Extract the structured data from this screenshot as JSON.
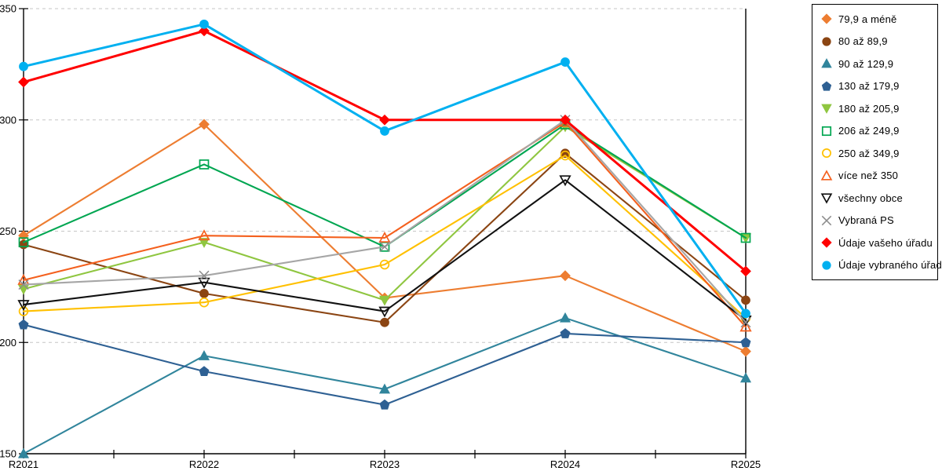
{
  "chart_data": {
    "type": "line",
    "title": "",
    "xlabel": "",
    "ylabel": "",
    "x": [
      "R2021",
      "R2022",
      "R2023",
      "R2024",
      "R2025"
    ],
    "ylim": [
      150,
      350
    ],
    "y_ticks": [
      350,
      300,
      250,
      200,
      150
    ],
    "grid": "horizontal-dashed",
    "grid_color": "#C6C6C6",
    "axis_color": "#000000",
    "legend_position": "top-right-outside",
    "series": [
      {
        "name": "79,9 a méně",
        "marker": "diamond",
        "fill": "filled",
        "color": "#ED7D31",
        "values": [
          248,
          298,
          220,
          230,
          196
        ]
      },
      {
        "name": "80 až 89,9",
        "marker": "circle",
        "fill": "filled",
        "color": "#8B4513",
        "values": [
          244,
          222,
          209,
          285,
          219
        ]
      },
      {
        "name": "90 až 129,9",
        "marker": "triangle-up",
        "fill": "filled",
        "color": "#31859C",
        "values": [
          150,
          194,
          179,
          211,
          184
        ]
      },
      {
        "name": "130 až 179,9",
        "marker": "pentagon",
        "fill": "filled",
        "color": "#2E6093",
        "values": [
          208,
          187,
          172,
          204,
          200
        ]
      },
      {
        "name": "180 až 205,9",
        "marker": "triangle-down",
        "fill": "filled",
        "color": "#8FC640",
        "values": [
          224,
          245,
          219,
          297,
          247
        ]
      },
      {
        "name": "206 až 249,9",
        "marker": "square",
        "fill": "open",
        "color": "#00A651",
        "values": [
          245,
          280,
          243,
          298,
          247
        ]
      },
      {
        "name": "250 až 349,9",
        "marker": "circle",
        "fill": "open",
        "color": "#FFC000",
        "values": [
          214,
          218,
          235,
          284,
          211
        ]
      },
      {
        "name": "více než 350",
        "marker": "triangle-up",
        "fill": "open",
        "color": "#F4601E",
        "values": [
          228,
          248,
          247,
          299,
          207
        ]
      },
      {
        "name": "všechny obce",
        "marker": "triangle-down",
        "fill": "open",
        "color": "#111111",
        "values": [
          217,
          227,
          214,
          273,
          210
        ]
      },
      {
        "name": "Vybraná PS",
        "marker": "x",
        "fill": "open",
        "color": "#A6A6A6",
        "marker_color": "#8C8C8C",
        "values": [
          226,
          230,
          243,
          300,
          209
        ]
      },
      {
        "name": "Údaje vašeho úřadu",
        "marker": "diamond",
        "fill": "filled",
        "color": "#FF0000",
        "thick": true,
        "values": [
          317,
          340,
          300,
          300,
          232
        ]
      },
      {
        "name": "Údaje vybraného úřadu",
        "marker": "circle",
        "fill": "filled",
        "color": "#00B0F0",
        "thick": true,
        "values": [
          324,
          343,
          295,
          326,
          213
        ]
      }
    ]
  }
}
